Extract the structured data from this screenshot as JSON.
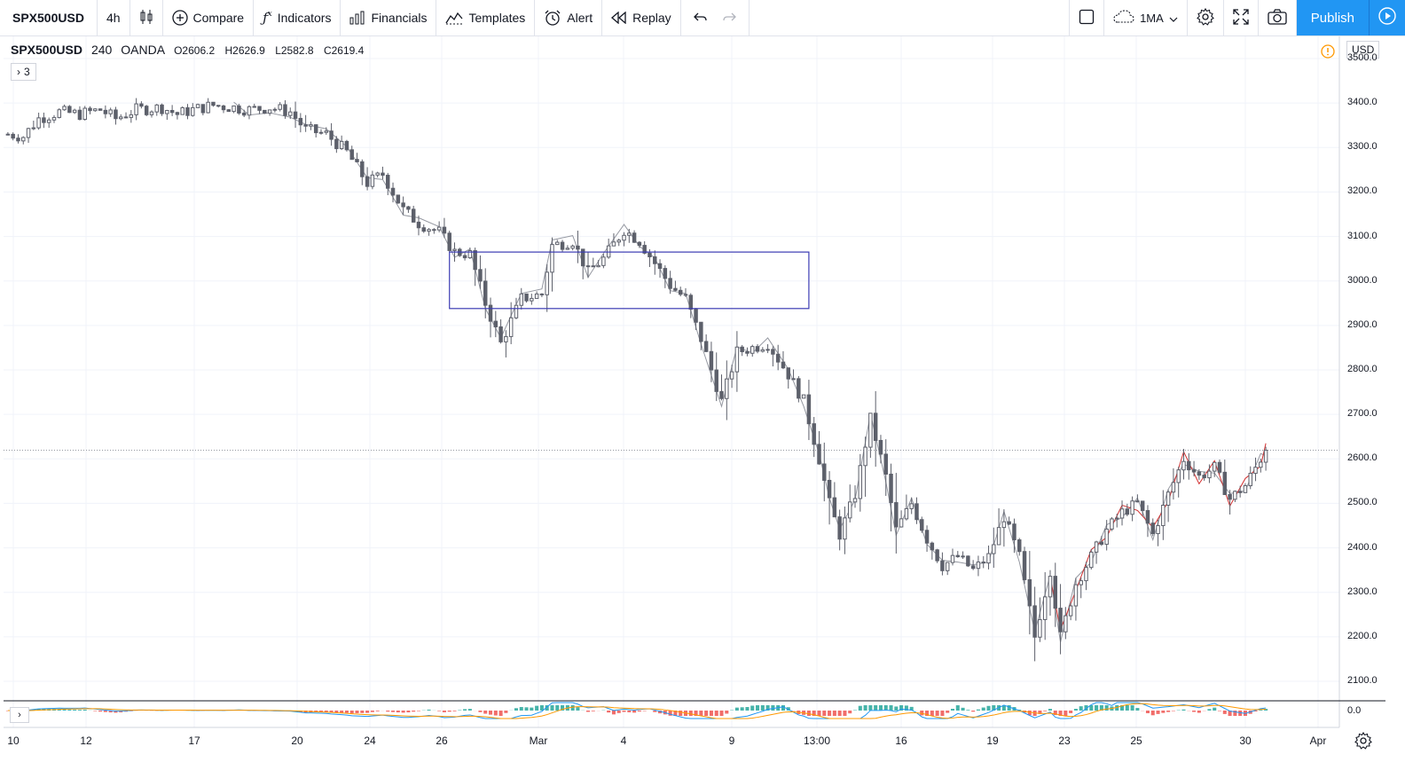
{
  "toolbar": {
    "symbol": "SPX500USD",
    "interval": "4h",
    "compare": "Compare",
    "indicators": "Indicators",
    "financials": "Financials",
    "templates": "Templates",
    "alert": "Alert",
    "replay": "Replay",
    "layout": "1MA",
    "publish": "Publish"
  },
  "legend": {
    "symbol": "SPX500USD",
    "interval": "240",
    "exchange": "OANDA",
    "open": "O2606.2",
    "high": "H2626.9",
    "low": "L2582.8",
    "close": "C2619.4",
    "indicator_count": "3"
  },
  "price_axis": {
    "currency": "USD",
    "ticks": [
      "3500.0",
      "3400.0",
      "3300.0",
      "3200.0",
      "3100.0",
      "3000.0",
      "2900.0",
      "2800.0",
      "2700.0",
      "2600.0",
      "2500.0",
      "2400.0",
      "2300.0",
      "2200.0",
      "2100.0"
    ],
    "osc_tick": "0.0"
  },
  "time_axis": {
    "ticks": [
      "10",
      "12",
      "17",
      "20",
      "24",
      "26",
      "Mar",
      "4",
      "9",
      "13:00",
      "16",
      "19",
      "23",
      "25",
      "30",
      "Apr"
    ]
  },
  "colors": {
    "candle": "#5d606b",
    "zigzag": "#9598a1",
    "zigzag_recent": "#d32f2f",
    "rectangle": "#3c3cb4",
    "accent": "#2196f3",
    "hist_pos": "#26a69a",
    "hist_neg": "#ef5350",
    "macd": "#2196f3",
    "signal": "#ff9800"
  },
  "chart_data": {
    "type": "candlestick",
    "symbol": "SPX500USD",
    "timeframe": "4h",
    "ylim": [
      2060,
      3540
    ],
    "x_tick_labels": [
      "10",
      "12",
      "17",
      "20",
      "24",
      "26",
      "Mar",
      "4",
      "9",
      "13:00",
      "16",
      "19",
      "23",
      "25",
      "30",
      "Apr"
    ],
    "price_path": [
      [
        0,
        3330
      ],
      [
        3,
        3325
      ],
      [
        6,
        3365
      ],
      [
        10,
        3380
      ],
      [
        14,
        3375
      ],
      [
        18,
        3385
      ],
      [
        21,
        3365
      ],
      [
        25,
        3385
      ],
      [
        30,
        3390
      ],
      [
        33,
        3375
      ],
      [
        36,
        3385
      ],
      [
        40,
        3395
      ],
      [
        44,
        3390
      ],
      [
        47,
        3385
      ],
      [
        51,
        3390
      ],
      [
        55,
        3380
      ],
      [
        58,
        3340
      ],
      [
        62,
        3330
      ],
      [
        66,
        3290
      ],
      [
        70,
        3220
      ],
      [
        73,
        3240
      ],
      [
        77,
        3160
      ],
      [
        80,
        3130
      ],
      [
        84,
        3110
      ],
      [
        87,
        3065
      ],
      [
        90,
        3060
      ],
      [
        93,
        2950
      ],
      [
        96,
        2860
      ],
      [
        100,
        2960
      ],
      [
        104,
        2970
      ],
      [
        106,
        3080
      ],
      [
        110,
        3090
      ],
      [
        113,
        3020
      ],
      [
        116,
        3050
      ],
      [
        120,
        3115
      ],
      [
        123,
        3090
      ],
      [
        126,
        3040
      ],
      [
        129,
        2990
      ],
      [
        132,
        2960
      ],
      [
        135,
        2870
      ],
      [
        137,
        2800
      ],
      [
        139,
        2730
      ],
      [
        142,
        2840
      ],
      [
        145,
        2850
      ],
      [
        148,
        2860
      ],
      [
        152,
        2790
      ],
      [
        155,
        2730
      ],
      [
        158,
        2600
      ],
      [
        160,
        2500
      ],
      [
        162,
        2430
      ],
      [
        165,
        2520
      ],
      [
        168,
        2690
      ],
      [
        171,
        2560
      ],
      [
        173,
        2440
      ],
      [
        176,
        2500
      ],
      [
        179,
        2420
      ],
      [
        182,
        2360
      ],
      [
        185,
        2380
      ],
      [
        188,
        2350
      ],
      [
        191,
        2380
      ],
      [
        194,
        2470
      ],
      [
        197,
        2380
      ],
      [
        200,
        2200
      ],
      [
        203,
        2350
      ],
      [
        205,
        2200
      ],
      [
        208,
        2320
      ],
      [
        211,
        2380
      ],
      [
        214,
        2440
      ],
      [
        217,
        2480
      ],
      [
        220,
        2500
      ],
      [
        223,
        2430
      ],
      [
        226,
        2520
      ],
      [
        229,
        2600
      ],
      [
        232,
        2560
      ],
      [
        235,
        2580
      ],
      [
        238,
        2510
      ],
      [
        241,
        2540
      ],
      [
        244,
        2600
      ],
      [
        245,
        2619
      ]
    ],
    "rectangle": {
      "price_top": 3065,
      "price_bottom": 2938
    },
    "last_price": 2619.4
  }
}
